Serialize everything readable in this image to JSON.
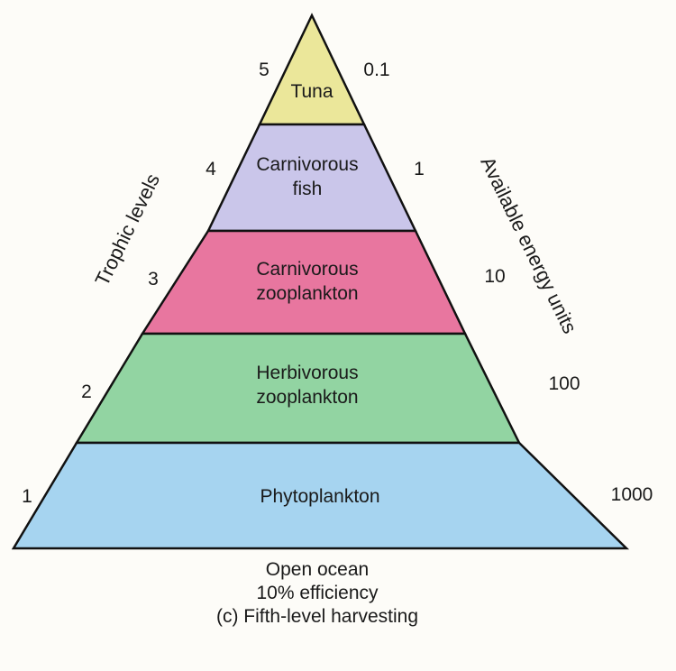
{
  "axis": {
    "left_title": "Trophic levels",
    "right_title": "Available energy units"
  },
  "levels": [
    {
      "number": "5",
      "line1": "Tuna",
      "line2": "",
      "energy": "0.1",
      "color": "#ebe79a"
    },
    {
      "number": "4",
      "line1": "Carnivorous",
      "line2": "fish",
      "energy": "1",
      "color": "#cac6ea"
    },
    {
      "number": "3",
      "line1": "Carnivorous",
      "line2": "zooplankton",
      "energy": "10",
      "color": "#e8769f"
    },
    {
      "number": "2",
      "line1": "Herbivorous",
      "line2": "zooplankton",
      "energy": "100",
      "color": "#92d4a2"
    },
    {
      "number": "1",
      "line1": "Phytoplankton",
      "line2": "",
      "energy": "1000",
      "color": "#a6d4f0"
    }
  ],
  "caption": {
    "line1": "Open ocean",
    "line2": "10% efficiency",
    "line3": "(c) Fifth-level harvesting"
  },
  "outline_color": "#111111"
}
